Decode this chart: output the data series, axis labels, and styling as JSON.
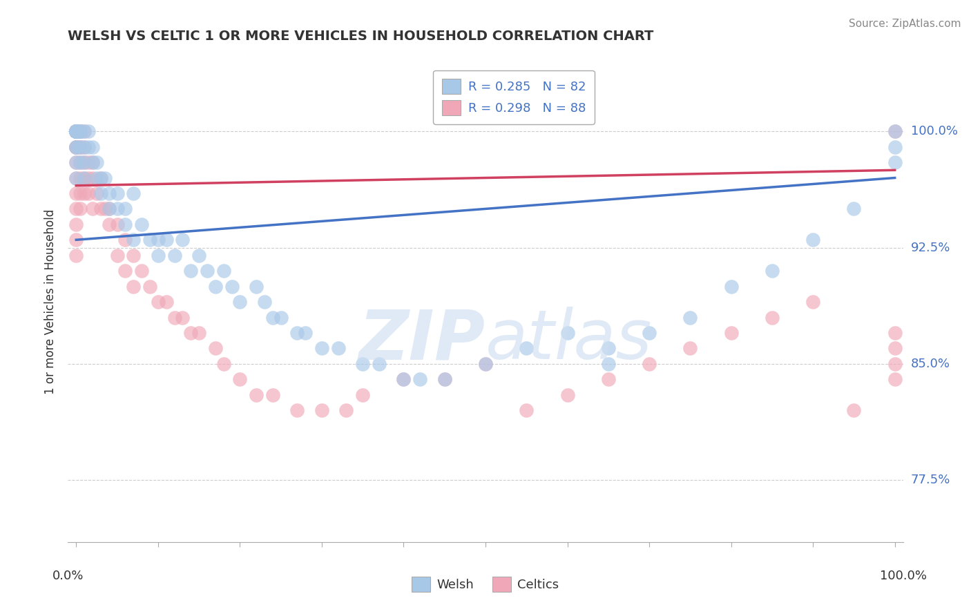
{
  "title": "WELSH VS CELTIC 1 OR MORE VEHICLES IN HOUSEHOLD CORRELATION CHART",
  "source": "Source: ZipAtlas.com",
  "ylabel": "1 or more Vehicles in Household",
  "xlim": [
    0.0,
    1.0
  ],
  "ylim": [
    0.735,
    1.045
  ],
  "yticks": [
    0.775,
    0.85,
    0.925,
    1.0
  ],
  "ytick_labels": [
    "77.5%",
    "85.0%",
    "92.5%",
    "100.0%"
  ],
  "xtick_positions": [
    0.0,
    0.1,
    0.2,
    0.3,
    0.4,
    0.5,
    0.6,
    0.7,
    0.8,
    0.9,
    1.0
  ],
  "legend_welsh": "Welsh",
  "legend_celtics": "Celtics",
  "R_welsh": 0.285,
  "N_welsh": 82,
  "R_celtics": 0.298,
  "N_celtics": 88,
  "welsh_color": "#a8c8e8",
  "celtics_color": "#f0a8b8",
  "line_welsh_color": "#4472c4",
  "line_celtics_color": "#d04060",
  "welsh_x": [
    0.0,
    0.0,
    0.0,
    0.0,
    0.0,
    0.0,
    0.0,
    0.0,
    0.0,
    0.0,
    0.0,
    0.0,
    0.0,
    0.0,
    0.0,
    0.005,
    0.005,
    0.005,
    0.005,
    0.005,
    0.01,
    0.01,
    0.01,
    0.01,
    0.015,
    0.015,
    0.02,
    0.02,
    0.025,
    0.025,
    0.03,
    0.03,
    0.035,
    0.04,
    0.04,
    0.05,
    0.05,
    0.06,
    0.06,
    0.07,
    0.07,
    0.08,
    0.09,
    0.1,
    0.1,
    0.11,
    0.12,
    0.13,
    0.14,
    0.15,
    0.16,
    0.17,
    0.18,
    0.19,
    0.2,
    0.22,
    0.23,
    0.24,
    0.25,
    0.27,
    0.28,
    0.3,
    0.32,
    0.35,
    0.37,
    0.4,
    0.42,
    0.45,
    0.5,
    0.55,
    0.6,
    0.65,
    0.65,
    0.7,
    0.75,
    0.8,
    0.85,
    0.9,
    0.95,
    1.0,
    1.0,
    1.0
  ],
  "welsh_y": [
    1.0,
    1.0,
    1.0,
    1.0,
    1.0,
    1.0,
    1.0,
    1.0,
    1.0,
    1.0,
    1.0,
    0.99,
    0.99,
    0.98,
    0.97,
    1.0,
    1.0,
    1.0,
    0.99,
    0.98,
    1.0,
    0.99,
    0.98,
    0.97,
    1.0,
    0.99,
    0.99,
    0.98,
    0.98,
    0.97,
    0.97,
    0.96,
    0.97,
    0.96,
    0.95,
    0.96,
    0.95,
    0.95,
    0.94,
    0.96,
    0.93,
    0.94,
    0.93,
    0.93,
    0.92,
    0.93,
    0.92,
    0.93,
    0.91,
    0.92,
    0.91,
    0.9,
    0.91,
    0.9,
    0.89,
    0.9,
    0.89,
    0.88,
    0.88,
    0.87,
    0.87,
    0.86,
    0.86,
    0.85,
    0.85,
    0.84,
    0.84,
    0.84,
    0.85,
    0.86,
    0.87,
    0.86,
    0.85,
    0.87,
    0.88,
    0.9,
    0.91,
    0.93,
    0.95,
    1.0,
    0.99,
    0.98
  ],
  "celtics_x": [
    0.0,
    0.0,
    0.0,
    0.0,
    0.0,
    0.0,
    0.0,
    0.0,
    0.0,
    0.0,
    0.0,
    0.0,
    0.0,
    0.0,
    0.0,
    0.0,
    0.0,
    0.0,
    0.0,
    0.0,
    0.0,
    0.0,
    0.0,
    0.005,
    0.005,
    0.005,
    0.005,
    0.005,
    0.005,
    0.005,
    0.005,
    0.01,
    0.01,
    0.01,
    0.01,
    0.01,
    0.015,
    0.015,
    0.015,
    0.02,
    0.02,
    0.02,
    0.025,
    0.03,
    0.03,
    0.035,
    0.04,
    0.04,
    0.05,
    0.05,
    0.06,
    0.06,
    0.07,
    0.07,
    0.08,
    0.09,
    0.1,
    0.11,
    0.12,
    0.13,
    0.14,
    0.15,
    0.17,
    0.18,
    0.2,
    0.22,
    0.24,
    0.27,
    0.3,
    0.33,
    0.35,
    0.4,
    0.45,
    0.5,
    0.55,
    0.6,
    0.65,
    0.7,
    0.75,
    0.8,
    0.85,
    0.9,
    0.95,
    1.0,
    1.0,
    1.0,
    1.0,
    1.0
  ],
  "celtics_y": [
    1.0,
    1.0,
    1.0,
    1.0,
    1.0,
    1.0,
    1.0,
    1.0,
    1.0,
    1.0,
    1.0,
    1.0,
    1.0,
    0.99,
    0.99,
    0.99,
    0.98,
    0.97,
    0.96,
    0.95,
    0.94,
    0.93,
    0.92,
    1.0,
    1.0,
    0.99,
    0.99,
    0.98,
    0.97,
    0.96,
    0.95,
    1.0,
    0.99,
    0.98,
    0.97,
    0.96,
    0.98,
    0.97,
    0.96,
    0.98,
    0.97,
    0.95,
    0.96,
    0.97,
    0.95,
    0.95,
    0.95,
    0.94,
    0.94,
    0.92,
    0.93,
    0.91,
    0.92,
    0.9,
    0.91,
    0.9,
    0.89,
    0.89,
    0.88,
    0.88,
    0.87,
    0.87,
    0.86,
    0.85,
    0.84,
    0.83,
    0.83,
    0.82,
    0.82,
    0.82,
    0.83,
    0.84,
    0.84,
    0.85,
    0.82,
    0.83,
    0.84,
    0.85,
    0.86,
    0.87,
    0.88,
    0.89,
    0.82,
    0.84,
    0.85,
    0.86,
    0.87,
    1.0
  ]
}
